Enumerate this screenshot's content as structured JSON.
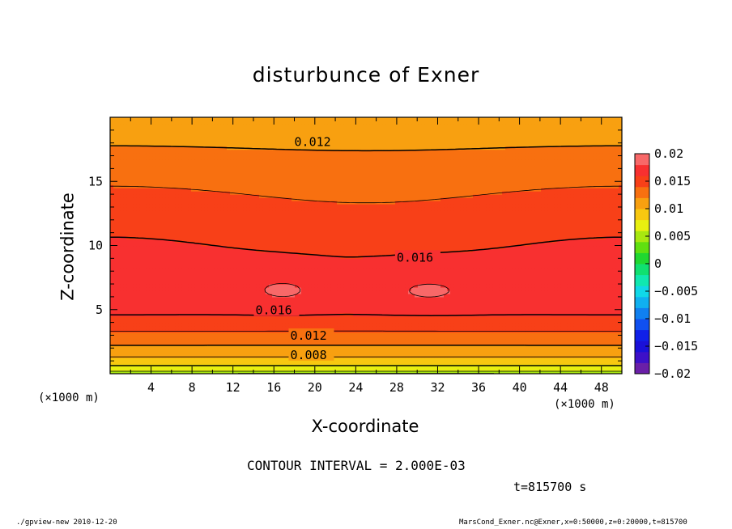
{
  "chart_data": {
    "type": "heatmap",
    "title": "disturbunce of Exner",
    "xlabel": "X-coordinate",
    "ylabel": "Z-coordinate",
    "x_unit_left": "(×1000 m)",
    "x_unit_right": "(×1000 m)",
    "xlim": [
      0,
      50
    ],
    "ylim": [
      0,
      20
    ],
    "x_ticks": [
      4,
      8,
      12,
      16,
      20,
      24,
      28,
      32,
      36,
      40,
      44,
      48
    ],
    "x_tick_labels": [
      "4",
      "8",
      "12",
      "16",
      "20",
      "24",
      "28",
      "32",
      "36",
      "40",
      "44",
      "48"
    ],
    "y_ticks": [
      5,
      10,
      15
    ],
    "y_tick_labels": [
      "5",
      "10",
      "15"
    ],
    "colorbar": {
      "range": [
        -0.02,
        0.02
      ],
      "tick_values": [
        0.02,
        0.015,
        0.01,
        0.005,
        0,
        -0.005,
        -0.01,
        -0.015,
        -0.02
      ],
      "tick_labels": [
        "0.02",
        "0.015",
        "0.01",
        "0.005",
        "0",
        "−0.005",
        "−0.01",
        "−0.015",
        "−0.02"
      ],
      "levels": [
        {
          "lo": -0.02,
          "hi": -0.018,
          "color": "#6a1fa8"
        },
        {
          "lo": -0.018,
          "hi": -0.016,
          "color": "#3d10c8"
        },
        {
          "lo": -0.016,
          "hi": -0.014,
          "color": "#1a10d8"
        },
        {
          "lo": -0.014,
          "hi": -0.012,
          "color": "#1020e8"
        },
        {
          "lo": -0.012,
          "hi": -0.01,
          "color": "#1050f0"
        },
        {
          "lo": -0.01,
          "hi": -0.008,
          "color": "#1080f0"
        },
        {
          "lo": -0.008,
          "hi": -0.006,
          "color": "#10b0f0"
        },
        {
          "lo": -0.006,
          "hi": -0.004,
          "color": "#10d8e8"
        },
        {
          "lo": -0.004,
          "hi": -0.002,
          "color": "#10e8b0"
        },
        {
          "lo": -0.002,
          "hi": 0.0,
          "color": "#10e070"
        },
        {
          "lo": 0.0,
          "hi": 0.002,
          "color": "#20d830"
        },
        {
          "lo": 0.002,
          "hi": 0.004,
          "color": "#60e010"
        },
        {
          "lo": 0.004,
          "hi": 0.006,
          "color": "#a8e810"
        },
        {
          "lo": 0.006,
          "hi": 0.008,
          "color": "#e8f010"
        },
        {
          "lo": 0.008,
          "hi": 0.01,
          "color": "#f8c810"
        },
        {
          "lo": 0.01,
          "hi": 0.012,
          "color": "#f8a010"
        },
        {
          "lo": 0.012,
          "hi": 0.014,
          "color": "#f87010"
        },
        {
          "lo": 0.014,
          "hi": 0.016,
          "color": "#f84018"
        },
        {
          "lo": 0.016,
          "hi": 0.018,
          "color": "#f83030"
        },
        {
          "lo": 0.018,
          "hi": 0.02,
          "color": "#f86868"
        },
        {
          "lo": 0.02,
          "hi": 0.022,
          "color": "#f8a0a0"
        }
      ]
    },
    "contour_interval": 0.002,
    "contour_labels": [
      {
        "text": "0.012",
        "x": 18.0,
        "z": 18.0
      },
      {
        "text": "0.016",
        "x": 28.0,
        "z": 9.0
      },
      {
        "text": "0.016",
        "x": 14.2,
        "z": 4.9
      },
      {
        "text": "0.012",
        "x": 17.6,
        "z": 2.9
      },
      {
        "text": "0.008",
        "x": 17.6,
        "z": 1.4
      }
    ],
    "annotations": {
      "contour_interval_text": "CONTOUR INTERVAL = 2.000E-03",
      "time_text": "t=815700 s",
      "footer_left": "./gpview-new  2010-12-20",
      "footer_right": "MarsCond_Exner.nc@Exner,x=0:50000,z=0:20000,t=815700"
    }
  }
}
